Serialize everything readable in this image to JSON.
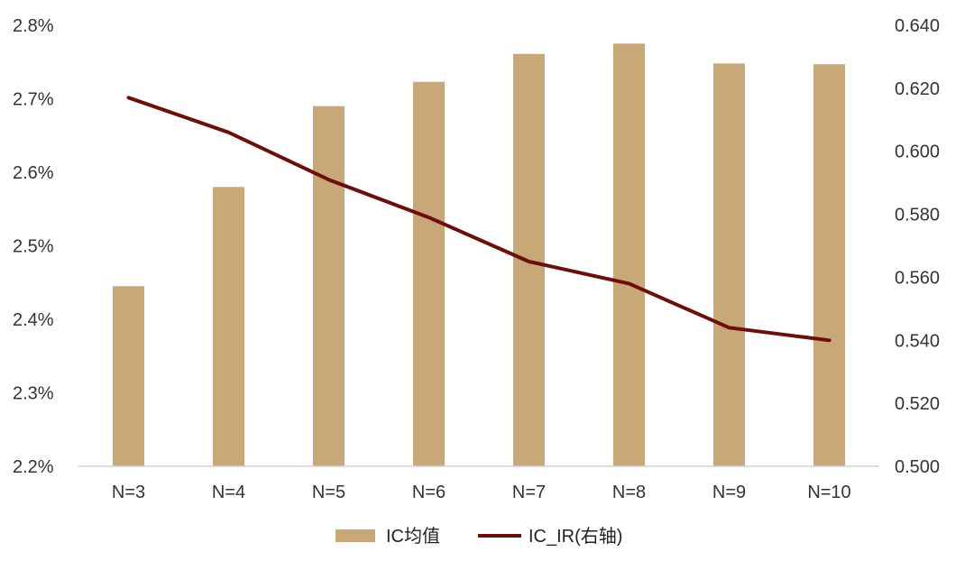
{
  "chart_data": {
    "type": "bar",
    "title": "",
    "categories": [
      "N=3",
      "N=4",
      "N=5",
      "N=6",
      "N=7",
      "N=8",
      "N=9",
      "N=10"
    ],
    "series": [
      {
        "name": "IC均值",
        "type": "bar",
        "axis": "left",
        "color": "#C9A878",
        "values": [
          2.445,
          2.58,
          2.69,
          2.723,
          2.761,
          2.775,
          2.748,
          2.747
        ]
      },
      {
        "name": "IC_IR(右轴)",
        "type": "line",
        "axis": "right",
        "color": "#6E0E0A",
        "values": [
          0.617,
          0.606,
          0.591,
          0.579,
          0.565,
          0.558,
          0.544,
          0.54
        ]
      }
    ],
    "y_left": {
      "ylim": [
        2.2,
        2.8
      ],
      "ticks": [
        "2.2%",
        "2.3%",
        "2.4%",
        "2.5%",
        "2.6%",
        "2.7%",
        "2.8%"
      ]
    },
    "y_right": {
      "ylim": [
        0.5,
        0.64
      ],
      "ticks": [
        "0.500",
        "0.520",
        "0.540",
        "0.560",
        "0.580",
        "0.600",
        "0.620",
        "0.640"
      ]
    },
    "grid": false,
    "legend_position": "bottom-center"
  }
}
